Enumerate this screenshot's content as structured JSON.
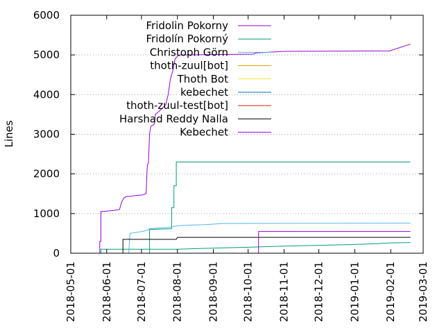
{
  "chart_data": {
    "type": "line",
    "title": "",
    "xlabel": "",
    "ylabel": "Lines",
    "ylim": [
      0,
      6000
    ],
    "xlim": [
      "2018-05-01",
      "2019-03-01"
    ],
    "y_ticks": [
      0,
      1000,
      2000,
      3000,
      4000,
      5000,
      6000
    ],
    "y_tick_labels": [
      "0",
      "1000",
      "2000",
      "3000",
      "4000",
      "5000",
      "6000"
    ],
    "x_ticks": [
      "2018-05-01",
      "2018-06-01",
      "2018-07-01",
      "2018-08-01",
      "2018-09-01",
      "2018-10-01",
      "2018-11-01",
      "2018-12-01",
      "2019-01-01",
      "2019-02-01",
      "2019-03-01"
    ],
    "x_tick_labels": [
      "2018-05-01",
      "2018-06-01",
      "2018-07-01",
      "2018-08-01",
      "2018-09-01",
      "2018-10-01",
      "2018-11-01",
      "2018-12-01",
      "2019-01-01",
      "2019-02-01",
      "2019-03-01"
    ],
    "grid": "horizontal dotted",
    "legend_position": "top-center",
    "series": [
      {
        "name": "Fridolin Pokorny",
        "color": "#9400d3",
        "points": [
          [
            "2018-05-26",
            0
          ],
          [
            "2018-05-26",
            300
          ],
          [
            "2018-05-27",
            300
          ],
          [
            "2018-05-27",
            1050
          ],
          [
            "2018-06-05",
            1070
          ],
          [
            "2018-06-12",
            1100
          ],
          [
            "2018-06-13",
            1200
          ],
          [
            "2018-06-14",
            1300
          ],
          [
            "2018-06-16",
            1400
          ],
          [
            "2018-06-18",
            1430
          ],
          [
            "2018-06-23",
            1440
          ],
          [
            "2018-06-27",
            1460
          ],
          [
            "2018-07-02",
            1470
          ],
          [
            "2018-07-05",
            1500
          ],
          [
            "2018-07-06",
            2200
          ],
          [
            "2018-07-07",
            2300
          ],
          [
            "2018-07-08",
            3000
          ],
          [
            "2018-07-09",
            3200
          ],
          [
            "2018-07-12",
            3250
          ],
          [
            "2018-07-13",
            3500
          ],
          [
            "2018-07-17",
            3600
          ],
          [
            "2018-07-22",
            3750
          ],
          [
            "2018-07-24",
            4000
          ],
          [
            "2018-07-26",
            4400
          ],
          [
            "2018-07-28",
            4600
          ],
          [
            "2018-07-30",
            4900
          ],
          [
            "2018-08-02",
            5000
          ],
          [
            "2018-10-05",
            5020
          ],
          [
            "2018-10-08",
            5050
          ],
          [
            "2018-11-01",
            5090
          ],
          [
            "2019-01-31",
            5100
          ],
          [
            "2019-02-18",
            5270
          ]
        ]
      },
      {
        "name": "Fridolín Pokorný",
        "color": "#009e73",
        "points": [
          [
            "2018-06-20",
            0
          ],
          [
            "2018-07-08",
            0
          ],
          [
            "2018-07-08",
            600
          ],
          [
            "2018-07-27",
            620
          ],
          [
            "2018-07-27",
            1150
          ],
          [
            "2018-07-29",
            1150
          ],
          [
            "2018-07-29",
            1700
          ],
          [
            "2018-07-31",
            1700
          ],
          [
            "2018-07-31",
            2300
          ],
          [
            "2019-02-18",
            2300
          ]
        ]
      },
      {
        "name": "Christoph Görn",
        "color": "#56b4e9",
        "points": [
          [
            "2018-06-20",
            0
          ],
          [
            "2018-06-21",
            500
          ],
          [
            "2018-07-02",
            550
          ],
          [
            "2018-07-06",
            580
          ],
          [
            "2018-07-08",
            620
          ],
          [
            "2018-07-25",
            650
          ],
          [
            "2018-07-30",
            680
          ],
          [
            "2018-08-05",
            700
          ],
          [
            "2018-08-25",
            720
          ],
          [
            "2018-09-10",
            750
          ],
          [
            "2019-02-18",
            760
          ]
        ]
      },
      {
        "name": "thoth-zuul[bot]",
        "color": "#e69f00",
        "points": []
      },
      {
        "name": "Thoth Bot",
        "color": "#f0e442",
        "points": []
      },
      {
        "name": "kebechet",
        "color": "#0072b2",
        "points": [
          [
            "2018-06-20",
            0
          ],
          [
            "2019-02-18",
            0
          ]
        ]
      },
      {
        "name": "thoth-zuul-test[bot]",
        "color": "#e51e10",
        "points": []
      },
      {
        "name": "Harshad Reddy Nalla",
        "color": "#000000",
        "points": [
          [
            "2018-06-15",
            0
          ],
          [
            "2018-06-15",
            350
          ],
          [
            "2018-07-31",
            350
          ],
          [
            "2018-08-01",
            400
          ],
          [
            "2019-02-18",
            400
          ]
        ]
      },
      {
        "name": "Kebechet",
        "color": "#9400d3",
        "points": [
          [
            "2018-10-10",
            0
          ],
          [
            "2018-10-10",
            550
          ],
          [
            "2019-02-18",
            550
          ]
        ]
      }
    ],
    "extra_series": [
      {
        "name": "",
        "color": "#009e73",
        "points": [
          [
            "2018-05-27",
            0
          ],
          [
            "2018-05-27",
            100
          ],
          [
            "2018-08-01",
            100
          ],
          [
            "2018-09-01",
            130
          ],
          [
            "2018-10-01",
            150
          ],
          [
            "2018-11-01",
            180
          ],
          [
            "2018-12-01",
            200
          ],
          [
            "2019-01-01",
            220
          ],
          [
            "2019-01-20",
            240
          ],
          [
            "2019-02-01",
            260
          ],
          [
            "2019-02-18",
            270
          ]
        ]
      }
    ]
  }
}
